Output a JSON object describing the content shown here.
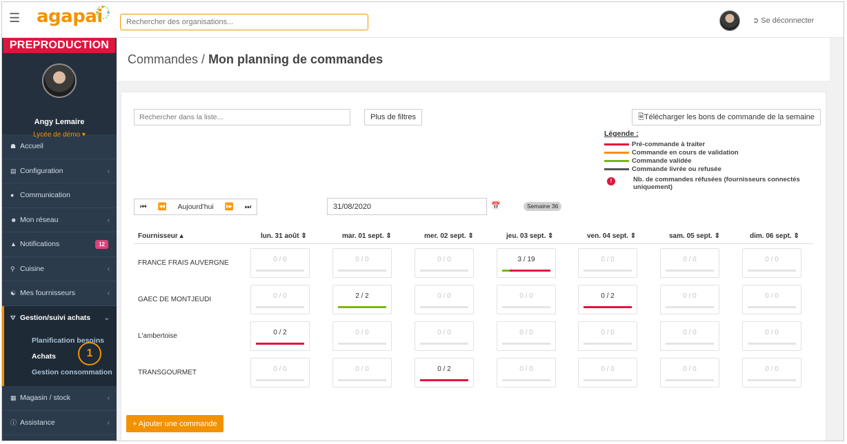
{
  "topbar": {
    "logo": "agapai",
    "search_placeholder": "Rechercher des organisations...",
    "logout_label": "Se déconnecter"
  },
  "sidebar": {
    "env_banner": "PREPRODUCTION",
    "user_name": "Angy Lemaire",
    "org_name": "Lycée de démo",
    "items": [
      {
        "label": "Accueil",
        "icon": "home-icon"
      },
      {
        "label": "Configuration",
        "icon": "bank-icon"
      },
      {
        "label": "Communication",
        "icon": "chat-icon"
      },
      {
        "label": "Mon réseau",
        "icon": "users-icon"
      },
      {
        "label": "Notifications",
        "icon": "bell-icon",
        "badge": "12"
      },
      {
        "label": "Cuisine",
        "icon": "cutlery-icon"
      },
      {
        "label": "Mes fournisseurs",
        "icon": "handshake-icon"
      },
      {
        "label": "Gestion/suivi achats",
        "icon": "cart-icon"
      },
      {
        "label": "Magasin / stock",
        "icon": "boxes-icon"
      },
      {
        "label": "Assistance",
        "icon": "info-icon"
      }
    ],
    "submenu": [
      {
        "label": "Planification besoins"
      },
      {
        "label": "Achats"
      },
      {
        "label": "Gestion consommation"
      }
    ],
    "callout": "1"
  },
  "page": {
    "breadcrumb": "Commandes /",
    "title": "Mon planning de commandes"
  },
  "toolbar": {
    "list_search_placeholder": "Rechercher dans la liste...",
    "more_filters": "Plus de filtres",
    "download": "Télécharger les bons de commande de la semaine"
  },
  "legend": {
    "title": "Légende :",
    "items": [
      {
        "label": "Pré-commande à traiter",
        "color": "#e0153d"
      },
      {
        "label": "Commande en cours de validation",
        "color": "#f39200"
      },
      {
        "label": "Commande validée",
        "color": "#7cb518"
      },
      {
        "label": "Commande livrée ou refusée",
        "color": "#555555"
      }
    ],
    "refused": {
      "label": "Nb. de commandes réfusées (fournisseurs connectés uniquement)",
      "mark": "!"
    }
  },
  "week_nav": {
    "first": "⏮",
    "prev": "⏪",
    "today": "Aujourd'hui",
    "next": "⏩",
    "last": "⏭",
    "date": "31/08/2020",
    "week": "Semaine 36"
  },
  "grid": {
    "supplier_header": "Fournisseur ▴",
    "days": [
      "lun. 31 août ⇕",
      "mar. 01 sept. ⇕",
      "mer. 02 sept. ⇕",
      "jeu. 03 sept. ⇕",
      "ven. 04 sept. ⇕",
      "sam. 05 sept. ⇕",
      "dim. 06 sept. ⇕"
    ],
    "rows": [
      {
        "supplier": "FRANCE FRAIS AUVERGNE",
        "cells": [
          {
            "value": "0 / 0"
          },
          {
            "value": "0 / 0"
          },
          {
            "value": "0 / 0"
          },
          {
            "value": "3 / 19",
            "bar": [
              {
                "color": "#7cb518",
                "fraction": 0.16
              },
              {
                "color": "#e0153d",
                "fraction": 0.84
              }
            ]
          },
          {
            "value": "0 / 0"
          },
          {
            "value": "0 / 0"
          },
          {
            "value": "0 / 0"
          }
        ]
      },
      {
        "supplier": "GAEC DE MONTJEUDI",
        "cells": [
          {
            "value": "0 / 0"
          },
          {
            "value": "2 / 2",
            "bar": [
              {
                "color": "#7cb518",
                "fraction": 1.0
              }
            ]
          },
          {
            "value": "0 / 0"
          },
          {
            "value": "0 / 0"
          },
          {
            "value": "0 / 2",
            "bar": [
              {
                "color": "#e0153d",
                "fraction": 1.0
              }
            ]
          },
          {
            "value": "0 / 0"
          },
          {
            "value": "0 / 0"
          }
        ]
      },
      {
        "supplier": "L'ambertoise",
        "cells": [
          {
            "value": "0 / 2",
            "bar": [
              {
                "color": "#e0153d",
                "fraction": 1.0
              }
            ]
          },
          {
            "value": "0 / 0"
          },
          {
            "value": "0 / 0"
          },
          {
            "value": "0 / 0"
          },
          {
            "value": "0 / 0"
          },
          {
            "value": "0 / 0"
          },
          {
            "value": "0 / 0"
          }
        ]
      },
      {
        "supplier": "TRANSGOURMET",
        "cells": [
          {
            "value": "0 / 0"
          },
          {
            "value": "0 / 0"
          },
          {
            "value": "0 / 2",
            "bar": [
              {
                "color": "#e0153d",
                "fraction": 1.0
              }
            ]
          },
          {
            "value": "0 / 0"
          },
          {
            "value": "0 / 0"
          },
          {
            "value": "0 / 0"
          },
          {
            "value": "0 / 0"
          }
        ]
      }
    ]
  },
  "actions": {
    "add_order": "+ Ajouter une commande"
  }
}
